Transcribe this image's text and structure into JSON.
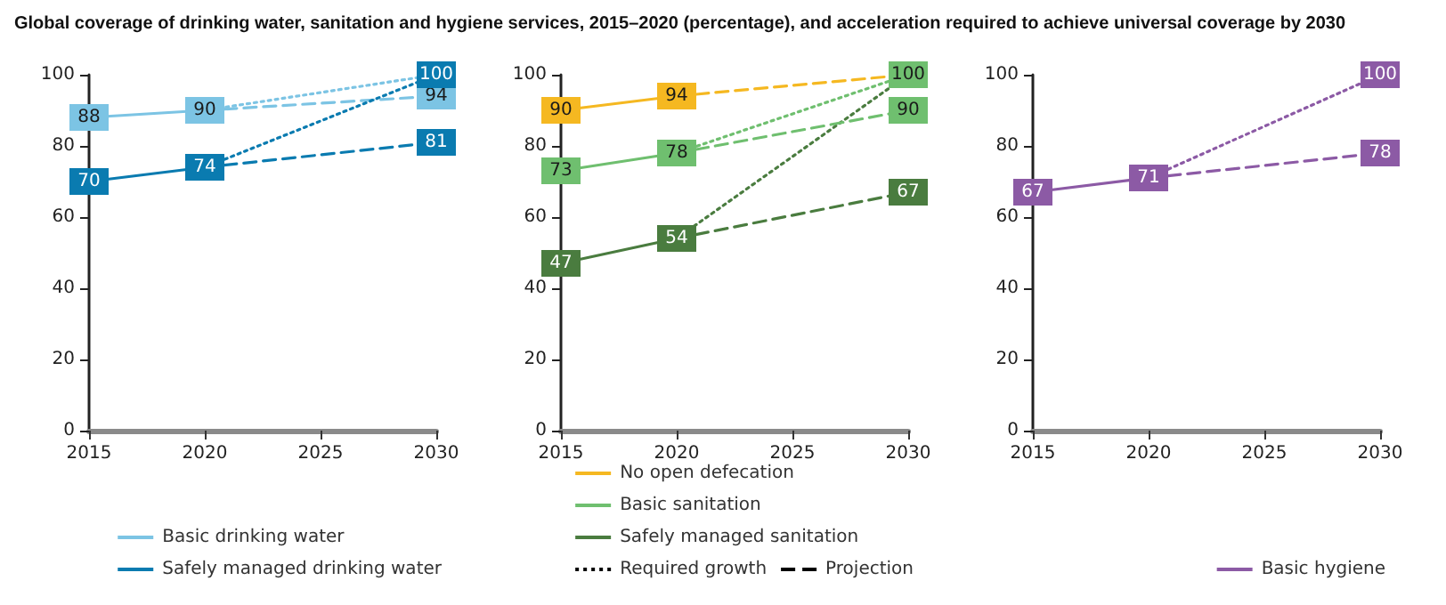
{
  "chart_data": [
    {
      "type": "line",
      "title": "Global coverage of drinking water, sanitation and hygiene services, 2015–2020 (percentage), and acceleration required to achieve universal coverage by 2030",
      "xlim": [
        2015,
        2030
      ],
      "xticks": [
        2015,
        2020,
        2025,
        2030
      ],
      "ylim": [
        0,
        100
      ],
      "yticks": [
        0,
        20,
        40,
        60,
        80,
        100
      ],
      "grid": false,
      "legend": "bottom right",
      "marker": "square",
      "series": [
        {
          "name": "Basic drinking water",
          "color": "#7cc4e4",
          "line_style": "solid",
          "x": [
            2015,
            2020
          ],
          "values": [
            88,
            90
          ],
          "value_labels": [
            "88",
            "90"
          ]
        },
        {
          "color": "#7cc4e4",
          "line_style": "dotted",
          "x": [
            2020,
            2030
          ],
          "values": [
            90,
            100
          ],
          "value_labels": [
            null,
            null
          ]
        },
        {
          "color": "#7cc4e4",
          "line_style": "dashed",
          "x": [
            2020,
            2030
          ],
          "values": [
            90,
            94
          ],
          "value_labels": [
            null,
            "94"
          ]
        },
        {
          "name": "Safely managed drinking water",
          "color": "#0a7bb0",
          "line_style": "solid",
          "x": [
            2015,
            2020
          ],
          "values": [
            70,
            74
          ],
          "value_labels": [
            "70",
            "74"
          ]
        },
        {
          "color": "#0a7bb0",
          "line_style": "dashed",
          "x": [
            2020,
            2030
          ],
          "values": [
            74,
            81
          ],
          "value_labels": [
            null,
            "81"
          ]
        },
        {
          "color": "#0a7bb0",
          "line_style": "dotted",
          "x": [
            2020,
            2030
          ],
          "values": [
            74,
            100
          ],
          "value_labels": [
            null,
            "100"
          ]
        }
      ]
    },
    {
      "type": "line",
      "xlim": [
        2015,
        2030
      ],
      "xticks": [
        2015,
        2020,
        2025,
        2030
      ],
      "ylim": [
        0,
        100
      ],
      "yticks": [
        0,
        20,
        40,
        60,
        80,
        100
      ],
      "grid": false,
      "legend": "bottom right",
      "marker": "square",
      "series": [
        {
          "name": "No open defecation",
          "color": "#f5b821",
          "line_style": "solid",
          "x": [
            2015,
            2020
          ],
          "values": [
            90,
            94
          ],
          "value_labels": [
            "90",
            "94"
          ]
        },
        {
          "color": "#f5b821",
          "line_style": "dashed",
          "x": [
            2020,
            2030
          ],
          "values": [
            94,
            100
          ],
          "value_labels": [
            null,
            null
          ]
        },
        {
          "color": "#4a7c3f",
          "line_style": "dotted",
          "x": [
            2020,
            2030
          ],
          "values": [
            54,
            100
          ],
          "value_labels": [
            null,
            null
          ]
        },
        {
          "name": "Basic sanitation",
          "color": "#6fbf6f",
          "line_style": "solid",
          "x": [
            2015,
            2020
          ],
          "values": [
            73,
            78
          ],
          "value_labels": [
            "73",
            "78"
          ]
        },
        {
          "color": "#6fbf6f",
          "line_style": "dashed",
          "x": [
            2020,
            2030
          ],
          "values": [
            78,
            90
          ],
          "value_labels": [
            null,
            "90"
          ]
        },
        {
          "color": "#6fbf6f",
          "line_style": "dotted",
          "x": [
            2020,
            2030
          ],
          "values": [
            78,
            100
          ],
          "value_labels": [
            null,
            "100"
          ]
        },
        {
          "name": "Safely managed sanitation",
          "color": "#4a7c3f",
          "line_style": "solid",
          "x": [
            2015,
            2020
          ],
          "values": [
            47,
            54
          ],
          "value_labels": [
            "47",
            "54"
          ]
        },
        {
          "color": "#4a7c3f",
          "line_style": "dashed",
          "x": [
            2020,
            2030
          ],
          "values": [
            54,
            67
          ],
          "value_labels": [
            null,
            "67"
          ]
        },
        {
          "name": "Required growth",
          "color": "#000000",
          "line_style": "dotted"
        },
        {
          "name": "Projection",
          "color": "#000000",
          "line_style": "dashed"
        }
      ]
    },
    {
      "type": "line",
      "xlim": [
        2015,
        2030
      ],
      "xticks": [
        2015,
        2020,
        2025,
        2030
      ],
      "ylim": [
        0,
        100
      ],
      "yticks": [
        0,
        20,
        40,
        60,
        80,
        100
      ],
      "grid": false,
      "legend": "bottom right",
      "marker": "square",
      "series": [
        {
          "name": "Basic hygiene",
          "color": "#8c5aa5",
          "line_style": "solid",
          "x": [
            2015,
            2020
          ],
          "values": [
            67,
            71
          ],
          "value_labels": [
            "67",
            "71"
          ]
        },
        {
          "color": "#8c5aa5",
          "line_style": "dotted",
          "x": [
            2020,
            2030
          ],
          "values": [
            71,
            100
          ],
          "value_labels": [
            null,
            "100"
          ]
        },
        {
          "color": "#8c5aa5",
          "line_style": "dashed",
          "x": [
            2020,
            2030
          ],
          "values": [
            71,
            78
          ],
          "value_labels": [
            null,
            "78"
          ]
        }
      ]
    }
  ]
}
